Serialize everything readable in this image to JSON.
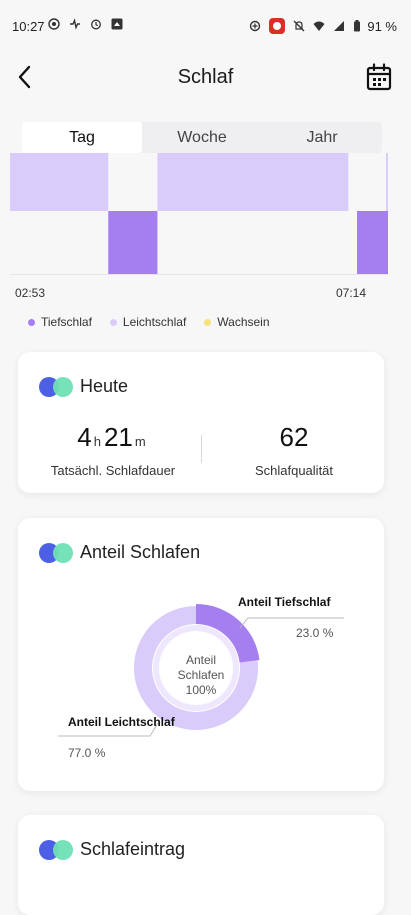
{
  "status_bar": {
    "time": "10:27",
    "battery": "91 %"
  },
  "header": {
    "title": "Schlaf"
  },
  "tabs": [
    {
      "label": "Tag",
      "active": true
    },
    {
      "label": "Woche",
      "active": false
    },
    {
      "label": "Jahr",
      "active": false
    }
  ],
  "chart_data": {
    "type": "bar",
    "x_start_label": "02:53",
    "x_end_label": "07:14",
    "series": [
      {
        "name": "Tiefschlaf",
        "color": "#a57ef0",
        "segments": [
          [
            0.26,
            0.39
          ],
          [
            0.918,
            1.0
          ]
        ]
      },
      {
        "name": "Leichtschlaf",
        "color": "#d9cbfa",
        "segments": [
          [
            0.0,
            0.26
          ],
          [
            0.39,
            0.895
          ],
          [
            0.995,
            1.0
          ]
        ]
      },
      {
        "name": "Wachsein",
        "color": "#f5e37a",
        "segments": []
      }
    ]
  },
  "legend": [
    {
      "label": "Tiefschlaf",
      "color": "#a57ef0"
    },
    {
      "label": "Leichtschlaf",
      "color": "#d9cbfa"
    },
    {
      "label": "Wachsein",
      "color": "#f5e37a"
    }
  ],
  "today": {
    "title": "Heute",
    "hours": "4",
    "hours_unit": "h",
    "minutes": "21",
    "minutes_unit": "m",
    "duration_label": "Tatsächl. Schlafdauer",
    "quality": "62",
    "quality_label": "Schlafqualität"
  },
  "share": {
    "title": "Anteil Schlafen",
    "center_line1": "Anteil",
    "center_line2": "Schlafen",
    "center_line3": "100%",
    "deep_label": "Anteil Tiefschlaf",
    "deep_value": "23.0 %",
    "deep_fraction": 0.23,
    "light_label": "Anteil Leichtschlaf",
    "light_value": "77.0 %",
    "light_fraction": 0.77
  },
  "entries": {
    "title": "Schlafeintrag"
  },
  "colors": {
    "deep": "#a57ef0",
    "light": "#d9cbfa",
    "awake": "#f5e37a",
    "logo_blue": "#4d5fe4",
    "logo_green": "#6fe0b6"
  }
}
